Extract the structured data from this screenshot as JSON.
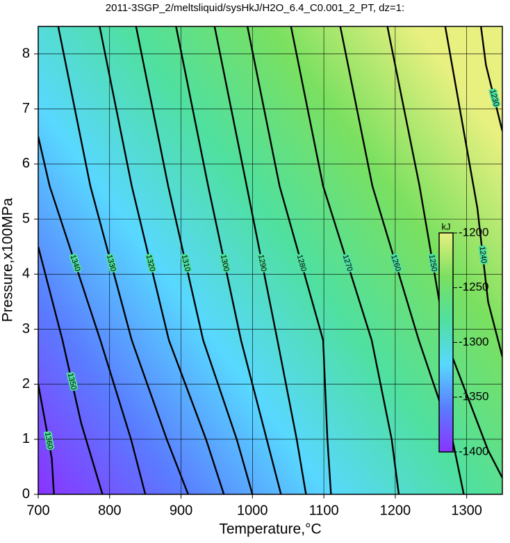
{
  "chart_data": {
    "type": "contour",
    "title": "2011-3SGP_2/meltsliquid/sysHkJ/H2O_6.4_C0.001_2_PT, dz=1:",
    "x_label": "Temperature,°C",
    "y_label": "Pressure,x100MPa",
    "xlim": [
      700,
      1350
    ],
    "ylim": [
      0,
      8.5
    ],
    "xticks": [
      700,
      800,
      900,
      1000,
      1100,
      1200,
      1300
    ],
    "yticks": [
      0,
      1,
      2,
      3,
      4,
      5,
      6,
      7,
      8
    ],
    "grid": true,
    "colormap": [
      "#8a33ff",
      "#5a7cff",
      "#58d8ff",
      "#4fe0a0",
      "#7ae060",
      "#e8f080"
    ],
    "colorbar": {
      "label": "kJ",
      "lim": [
        -1400,
        -1200
      ],
      "ticks": [
        -1200,
        -1250,
        -1300,
        -1350,
        -1400
      ]
    },
    "series": [
      {
        "level": 1360,
        "x": [
          700,
          710,
          719,
          722
        ],
        "y": [
          2.0,
          1.3,
          0.65,
          0
        ]
      },
      {
        "level": 1350,
        "x": [
          700,
          734,
          760,
          790
        ],
        "y": [
          4.5,
          2.8,
          1.3,
          0
        ]
      },
      {
        "level": 1340,
        "x": [
          700,
          716,
          787,
          830,
          850
        ],
        "y": [
          6.5,
          5.6,
          2.8,
          1,
          0
        ]
      },
      {
        "level": 1330,
        "x": [
          728,
          773,
          831,
          880,
          910
        ],
        "y": [
          8.5,
          5.6,
          2.8,
          1,
          0
        ]
      },
      {
        "level": 1320,
        "x": [
          786,
          831,
          883,
          935,
          960
        ],
        "y": [
          8.5,
          5.6,
          2.8,
          1,
          0
        ]
      },
      {
        "level": 1310,
        "x": [
          837,
          882,
          931,
          978,
          1000
        ],
        "y": [
          8.5,
          5.6,
          2.8,
          1,
          0
        ]
      },
      {
        "level": 1300,
        "x": [
          893,
          938,
          984,
          1020,
          1040
        ],
        "y": [
          8.5,
          5.6,
          2.8,
          1,
          0
        ]
      },
      {
        "level": 1290,
        "x": [
          947,
          992,
          1035,
          1062,
          1075
        ],
        "y": [
          8.5,
          5.6,
          2.8,
          1,
          0
        ]
      },
      {
        "level": 1280,
        "x": [
          993,
          1038,
          1099,
          1105,
          1110
        ],
        "y": [
          8.5,
          5.6,
          2.8,
          1,
          0
        ]
      },
      {
        "level": 1270,
        "x": [
          1054,
          1099,
          1167,
          1195,
          1205
        ],
        "y": [
          8.5,
          5.6,
          2.8,
          1,
          0
        ]
      },
      {
        "level": 1260,
        "x": [
          1123,
          1168,
          1233,
          1280,
          1296
        ],
        "y": [
          8.5,
          5.6,
          2.8,
          1,
          0
        ]
      },
      {
        "level": 1250,
        "x": [
          1189,
          1234,
          1271,
          1330,
          1350
        ],
        "y": [
          8.5,
          5.6,
          2.8,
          0.8,
          0.3
        ]
      },
      {
        "level": 1240,
        "x": [
          1270,
          1315,
          1330,
          1350
        ],
        "y": [
          8.5,
          5.2,
          3.5,
          2.5
        ]
      },
      {
        "level": 1230,
        "x": [
          1320,
          1327,
          1350
        ],
        "y": [
          8.5,
          7.8,
          6.6
        ]
      }
    ]
  }
}
